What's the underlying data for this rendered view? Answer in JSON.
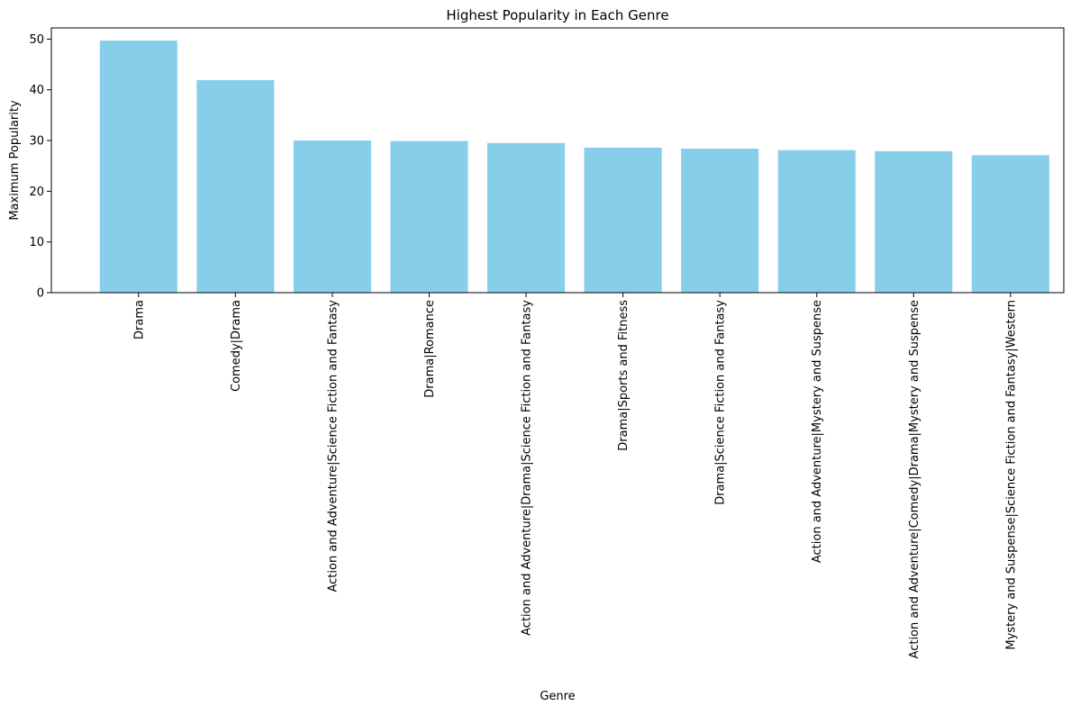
{
  "chart_data": {
    "type": "bar",
    "title": "Highest Popularity in Each Genre",
    "xlabel": "Genre",
    "ylabel": "Maximum Popularity",
    "categories": [
      "Drama",
      "Comedy|Drama",
      "Action and Adventure|Science Fiction and Fantasy",
      "Drama|Romance",
      "Action and Adventure|Drama|Science Fiction and Fantasy",
      "Drama|Sports and Fitness",
      "Drama|Science Fiction and Fantasy",
      "Action and Adventure|Mystery and Suspense",
      "Action and Adventure|Comedy|Drama|Mystery and Suspense",
      "Mystery and Suspense|Science Fiction and Fantasy|Western"
    ],
    "values": [
      49.7,
      41.9,
      30.0,
      29.9,
      29.5,
      28.6,
      28.4,
      28.1,
      27.9,
      27.1
    ],
    "ylim": [
      0,
      52.2
    ],
    "yticks": [
      0,
      10,
      20,
      30,
      40,
      50
    ],
    "grid": false,
    "colors": {
      "bar": "#87ceeb",
      "axis": "#000000"
    }
  }
}
